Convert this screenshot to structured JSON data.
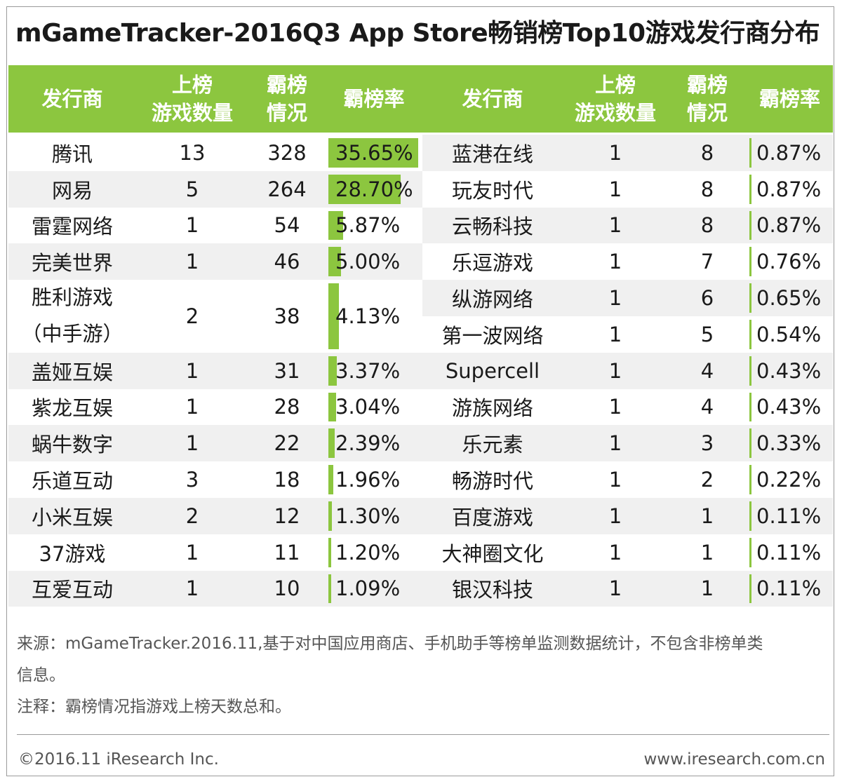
{
  "title": "mGameTracker-2016Q3 App Store畅销榜Top10游戏发行商分布",
  "header": {
    "publisher": "发行商",
    "games_line1": "上榜",
    "games_line2": "游戏数量",
    "days_line1": "霸榜",
    "days_line2": "情况",
    "rate": "霸榜率"
  },
  "chart_data": {
    "type": "table",
    "columns": [
      "发行商",
      "上榜游戏数量",
      "霸榜情况",
      "霸榜率"
    ],
    "left": [
      {
        "publisher": "腾讯",
        "games": "13",
        "days": "328",
        "rate": "35.65%",
        "rate_value": 35.65
      },
      {
        "publisher": "网易",
        "games": "5",
        "days": "264",
        "rate": "28.70%",
        "rate_value": 28.7
      },
      {
        "publisher": "雷霆网络",
        "games": "1",
        "days": "54",
        "rate": "5.87%",
        "rate_value": 5.87
      },
      {
        "publisher": "完美世界",
        "games": "1",
        "days": "46",
        "rate": "5.00%",
        "rate_value": 5.0
      },
      {
        "publisher": "胜利游戏",
        "publisher_line2": "（中手游）",
        "games": "2",
        "days": "38",
        "rate": "4.13%",
        "rate_value": 4.13
      },
      {
        "publisher": "盖娅互娱",
        "games": "1",
        "days": "31",
        "rate": "3.37%",
        "rate_value": 3.37
      },
      {
        "publisher": "紫龙互娱",
        "games": "1",
        "days": "28",
        "rate": "3.04%",
        "rate_value": 3.04
      },
      {
        "publisher": "蜗牛数字",
        "games": "1",
        "days": "22",
        "rate": "2.39%",
        "rate_value": 2.39
      },
      {
        "publisher": "乐道互动",
        "games": "3",
        "days": "18",
        "rate": "1.96%",
        "rate_value": 1.96
      },
      {
        "publisher": "小米互娱",
        "games": "2",
        "days": "12",
        "rate": "1.30%",
        "rate_value": 1.3
      },
      {
        "publisher": "37游戏",
        "games": "1",
        "days": "11",
        "rate": "1.20%",
        "rate_value": 1.2
      },
      {
        "publisher": "互爱互动",
        "games": "1",
        "days": "10",
        "rate": "1.09%",
        "rate_value": 1.09
      }
    ],
    "right": [
      {
        "publisher": "蓝港在线",
        "games": "1",
        "days": "8",
        "rate": "0.87%",
        "rate_value": 0.87
      },
      {
        "publisher": "玩友时代",
        "games": "1",
        "days": "8",
        "rate": "0.87%",
        "rate_value": 0.87
      },
      {
        "publisher": "云畅科技",
        "games": "1",
        "days": "8",
        "rate": "0.87%",
        "rate_value": 0.87
      },
      {
        "publisher": "乐逗游戏",
        "games": "1",
        "days": "7",
        "rate": "0.76%",
        "rate_value": 0.76
      },
      {
        "publisher": "纵游网络",
        "games": "1",
        "days": "6",
        "rate": "0.65%",
        "rate_value": 0.65
      },
      {
        "publisher": "第一波网络",
        "games": "1",
        "days": "5",
        "rate": "0.54%",
        "rate_value": 0.54
      },
      {
        "publisher": "Supercell",
        "games": "1",
        "days": "4",
        "rate": "0.43%",
        "rate_value": 0.43
      },
      {
        "publisher": "游族网络",
        "games": "1",
        "days": "4",
        "rate": "0.43%",
        "rate_value": 0.43
      },
      {
        "publisher": "乐元素",
        "games": "1",
        "days": "3",
        "rate": "0.33%",
        "rate_value": 0.33
      },
      {
        "publisher": "畅游时代",
        "games": "1",
        "days": "2",
        "rate": "0.22%",
        "rate_value": 0.22
      },
      {
        "publisher": "百度游戏",
        "games": "1",
        "days": "1",
        "rate": "0.11%",
        "rate_value": 0.11
      },
      {
        "publisher": "大神圈文化",
        "games": "1",
        "days": "1",
        "rate": "0.11%",
        "rate_value": 0.11
      },
      {
        "publisher": "银汉科技",
        "games": "1",
        "days": "1",
        "rate": "0.11%",
        "rate_value": 0.11
      }
    ]
  },
  "notes": {
    "source_line1": "来源：mGameTracker.2016.11,基于对中国应用商店、手机助手等榜单监测数据统计，不包含非榜单类",
    "source_line2": "信息。",
    "remark": "注释：霸榜情况指游戏上榜天数总和。"
  },
  "footer": {
    "copyright": "©2016.11 iResearch Inc.",
    "website": "www.iresearch.com.cn"
  },
  "colors": {
    "accent": "#8cc63f",
    "stripe": "#f0f0f0"
  }
}
